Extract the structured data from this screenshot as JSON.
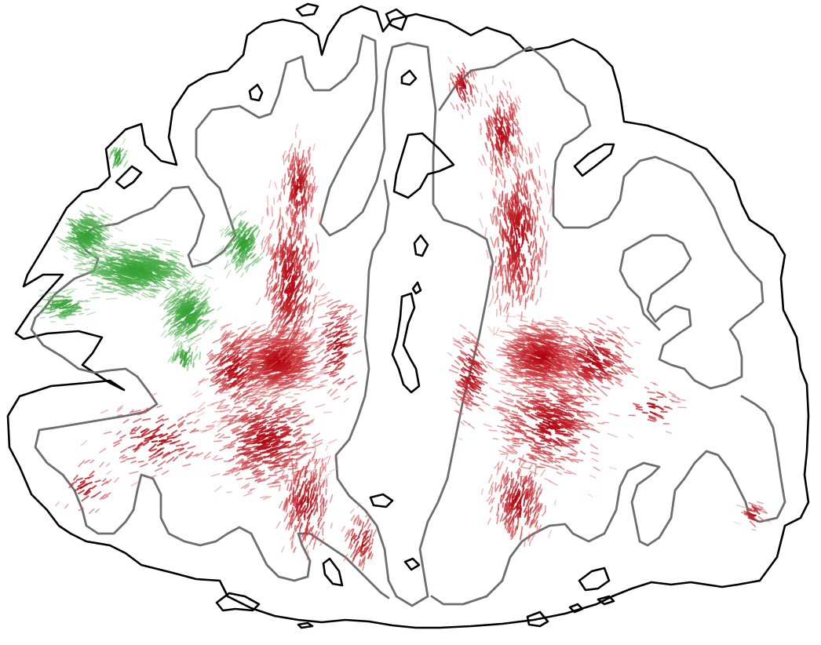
{
  "figure": {
    "background": "#ffffff",
    "outer_contour_color": "#000000",
    "inner_contour_color": "#6e6e6e",
    "ventricle_color": "#000000",
    "fiber_palette": {
      "green_region": "#2e9e2e",
      "red_dense": "#b0000a",
      "red_sparse": "#f08a8a"
    },
    "symmetric_tracts": true,
    "text_labels": []
  }
}
